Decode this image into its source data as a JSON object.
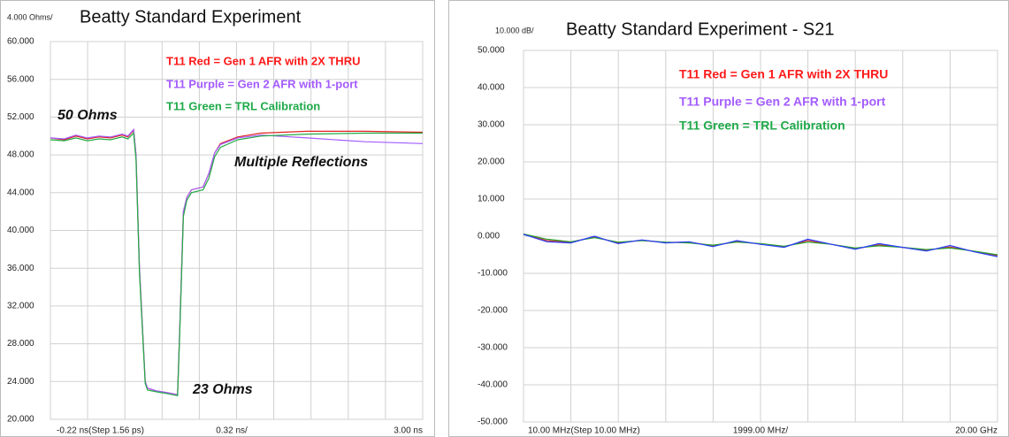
{
  "chart_data": [
    {
      "type": "line",
      "title": "Beatty Standard Experiment",
      "scale_label": "4.000 Ohms/",
      "x_labels": [
        "-0.22 ns(Step 1.56 ps)",
        "0.32 ns/",
        "3.00 ns"
      ],
      "annotations": [
        "50 Ohms",
        "Multiple Reflections",
        "23 Ohms"
      ],
      "legend_notes": [
        {
          "text": "T11 Red = Gen 1 AFR with 2X THRU",
          "color": "#ff1a1a"
        },
        {
          "text": "T11 Purple = Gen 2 AFR with 1-port",
          "color": "#a35cff"
        },
        {
          "text": "T11 Green = TRL Calibration",
          "color": "#1faa4a"
        }
      ],
      "xlim": [
        -0.22,
        3.0
      ],
      "xticks": [
        -0.22,
        0.102,
        0.424,
        0.746,
        1.068,
        1.39,
        1.712,
        2.034,
        2.356,
        2.678,
        3.0
      ],
      "ylim": [
        20,
        60
      ],
      "yticks": [
        {
          "value": 60,
          "label": "60.000"
        },
        {
          "value": 56,
          "label": "56.000"
        },
        {
          "value": 52,
          "label": "52.000"
        },
        {
          "value": 48,
          "label": "48.000"
        },
        {
          "value": 44,
          "label": "44.000"
        },
        {
          "value": 40,
          "label": "40.000"
        },
        {
          "value": 36,
          "label": "36.000"
        },
        {
          "value": 32,
          "label": "32.000"
        },
        {
          "value": 28,
          "label": "28.000"
        },
        {
          "value": 24,
          "label": "24.000"
        },
        {
          "value": 20,
          "label": "20.000"
        }
      ],
      "grid": true,
      "x": [
        -0.22,
        -0.1,
        0.0,
        0.1,
        0.2,
        0.3,
        0.4,
        0.45,
        0.5,
        0.52,
        0.55,
        0.6,
        0.62,
        0.7,
        0.8,
        0.88,
        0.9,
        0.93,
        0.96,
        1.0,
        1.1,
        1.15,
        1.2,
        1.25,
        1.4,
        1.6,
        2.0,
        2.5,
        3.0
      ],
      "series": [
        {
          "name": "Red",
          "color": "#e02020",
          "values": [
            49.8,
            49.6,
            50.0,
            49.7,
            49.9,
            49.8,
            50.1,
            49.9,
            50.6,
            48,
            36,
            24,
            23.3,
            23,
            22.8,
            22.6,
            30,
            42,
            43.5,
            44.3,
            44.6,
            46,
            48.2,
            49.2,
            49.9,
            50.3,
            50.5,
            50.5,
            50.4
          ]
        },
        {
          "name": "Purple",
          "color": "#a35cff",
          "values": [
            49.8,
            49.7,
            50.1,
            49.8,
            50.0,
            49.9,
            50.2,
            50.0,
            50.7,
            48,
            36,
            24,
            23.3,
            23,
            22.8,
            22.6,
            30,
            42,
            43.5,
            44.3,
            44.6,
            46,
            48.2,
            49.1,
            49.8,
            50.1,
            49.8,
            49.4,
            49.2
          ]
        },
        {
          "name": "Green",
          "color": "#22aa44",
          "values": [
            49.6,
            49.5,
            49.8,
            49.5,
            49.7,
            49.6,
            49.9,
            49.7,
            50.3,
            47.5,
            35.5,
            23.8,
            23.1,
            22.9,
            22.7,
            22.5,
            29.5,
            41.5,
            43.2,
            44.0,
            44.3,
            45.5,
            47.8,
            48.8,
            49.6,
            50.0,
            50.2,
            50.3,
            50.3
          ]
        }
      ]
    },
    {
      "type": "line",
      "title": "Beatty Standard Experiment - S21",
      "scale_label": "10.000 dB/",
      "x_labels": [
        "10.00 MHz(Step 10.00 MHz)",
        "1999.00 MHz/",
        "20.00 GHz"
      ],
      "legend_notes": [
        {
          "text": "T11 Red = Gen 1 AFR with 2X THRU",
          "color": "#ff1a1a"
        },
        {
          "text": "T11 Purple = Gen 2 AFR with 1-port",
          "color": "#a35cff"
        },
        {
          "text": "T11 Green = TRL Calibration",
          "color": "#1faa4a"
        }
      ],
      "xlim": [
        0.01,
        20
      ],
      "xticks": [
        0.01,
        2.009,
        4.008,
        6.007,
        8.006,
        10.005,
        12.004,
        14.003,
        16.002,
        18.001,
        20
      ],
      "ylim": [
        -50,
        50
      ],
      "yticks": [
        {
          "value": 50,
          "label": "50.000"
        },
        {
          "value": 40,
          "label": "40.000"
        },
        {
          "value": 30,
          "label": "30.000"
        },
        {
          "value": 20,
          "label": "20.000"
        },
        {
          "value": 10,
          "label": "10.000"
        },
        {
          "value": 0,
          "label": "0.000"
        },
        {
          "value": -10,
          "label": "-10.000"
        },
        {
          "value": -20,
          "label": "-20.000"
        },
        {
          "value": -30,
          "label": "-30.000"
        },
        {
          "value": -40,
          "label": "-40.000"
        },
        {
          "value": -50,
          "label": "-50.000"
        }
      ],
      "grid": true,
      "x": [
        0.01,
        1,
        2,
        3,
        4,
        5,
        6,
        7,
        8,
        9,
        10,
        11,
        12,
        13,
        14,
        15,
        16,
        17,
        18,
        19,
        20
      ],
      "series": [
        {
          "name": "Red",
          "color": "#c83030",
          "values": [
            0.5,
            -1.2,
            -1.6,
            -0.2,
            -1.8,
            -1.1,
            -1.7,
            -1.6,
            -2.6,
            -1.4,
            -2.1,
            -2.8,
            -1.2,
            -2.2,
            -3.4,
            -2.3,
            -3.0,
            -3.8,
            -2.9,
            -4.1,
            -5.2
          ]
        },
        {
          "name": "Green",
          "color": "#2ca02c",
          "values": [
            0.6,
            -0.8,
            -1.5,
            -0.4,
            -1.6,
            -1.2,
            -1.6,
            -1.8,
            -2.4,
            -1.6,
            -2.0,
            -2.7,
            -1.6,
            -2.2,
            -3.2,
            -2.6,
            -3.0,
            -3.6,
            -3.2,
            -4.0,
            -5.0
          ]
        },
        {
          "name": "Blue",
          "color": "#2a3cff",
          "values": [
            0.5,
            -1.5,
            -1.8,
            0.0,
            -2.0,
            -1.0,
            -1.8,
            -1.5,
            -2.8,
            -1.2,
            -2.2,
            -3.0,
            -0.8,
            -2.2,
            -3.5,
            -2.0,
            -3.0,
            -4.0,
            -2.5,
            -4.2,
            -5.5
          ]
        }
      ]
    }
  ]
}
